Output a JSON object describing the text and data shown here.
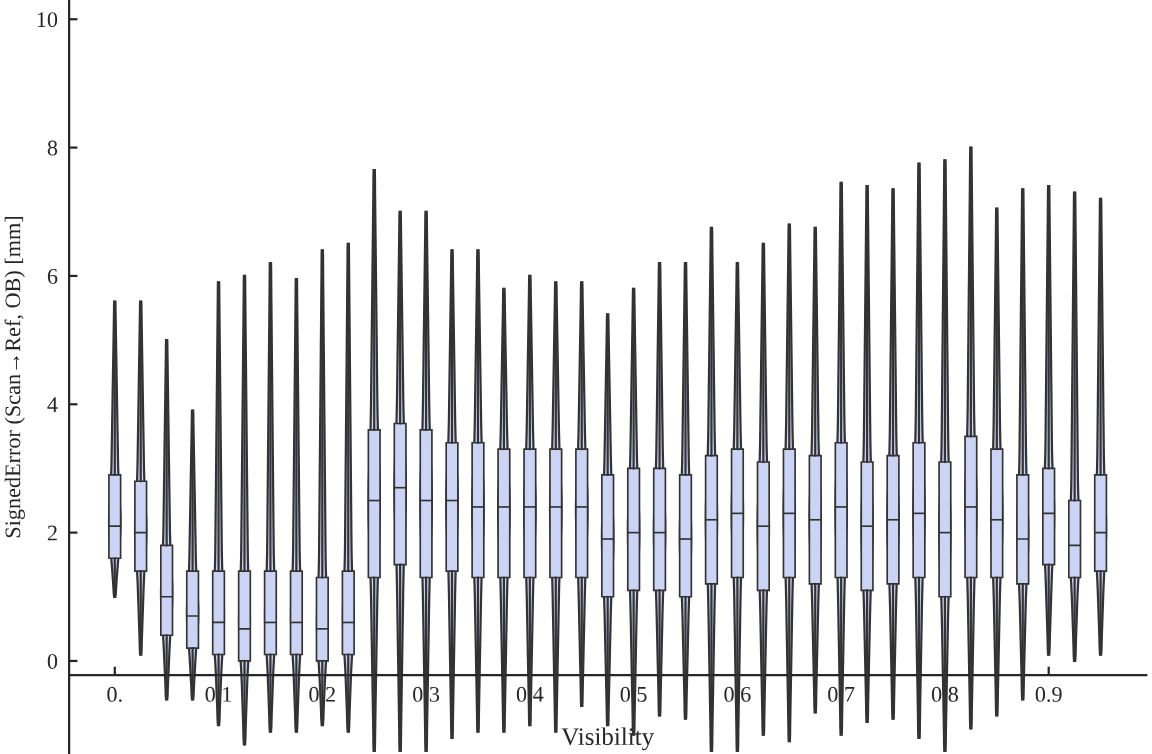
{
  "chart_data": {
    "type": "box",
    "xlabel": "Visibility",
    "ylabel": "SignedError (Scan→Ref, OB) [mm]",
    "categories": [
      "0.",
      null,
      null,
      null,
      "0.1",
      null,
      null,
      null,
      "0.2",
      null,
      null,
      null,
      "0.3",
      null,
      null,
      null,
      "0.4",
      null,
      null,
      null,
      "0.5",
      null,
      null,
      null,
      "0.6",
      null,
      null,
      null,
      "0.7",
      null,
      null,
      null,
      "0.8",
      null,
      null,
      null,
      "0.9",
      null,
      null
    ],
    "boxes": [
      {
        "low": 1.0,
        "q1": 1.6,
        "median": 2.1,
        "q3": 2.9,
        "high": 5.6
      },
      {
        "low": 0.1,
        "q1": 1.4,
        "median": 2.0,
        "q3": 2.8,
        "high": 5.6
      },
      {
        "low": -0.6,
        "q1": 0.4,
        "median": 1.0,
        "q3": 1.8,
        "high": 5.0
      },
      {
        "low": -0.6,
        "q1": 0.2,
        "median": 0.7,
        "q3": 1.4,
        "high": 3.9
      },
      {
        "low": -1.0,
        "q1": 0.1,
        "median": 0.6,
        "q3": 1.4,
        "high": 5.9
      },
      {
        "low": -1.3,
        "q1": 0.0,
        "median": 0.5,
        "q3": 1.4,
        "high": 6.0
      },
      {
        "low": -1.1,
        "q1": 0.1,
        "median": 0.6,
        "q3": 1.4,
        "high": 6.2
      },
      {
        "low": -1.1,
        "q1": 0.1,
        "median": 0.6,
        "q3": 1.4,
        "high": 5.95
      },
      {
        "low": -1.0,
        "q1": 0.0,
        "median": 0.5,
        "q3": 1.3,
        "high": 6.4
      },
      {
        "low": -1.1,
        "q1": 0.1,
        "median": 0.6,
        "q3": 1.4,
        "high": 6.5
      },
      {
        "low": -1.4,
        "q1": 1.3,
        "median": 2.5,
        "q3": 3.6,
        "high": 7.65
      },
      {
        "low": -1.4,
        "q1": 1.5,
        "median": 2.7,
        "q3": 3.7,
        "high": 7.0
      },
      {
        "low": -1.4,
        "q1": 1.3,
        "median": 2.5,
        "q3": 3.6,
        "high": 7.0
      },
      {
        "low": -1.2,
        "q1": 1.4,
        "median": 2.5,
        "q3": 3.4,
        "high": 6.4
      },
      {
        "low": -1.1,
        "q1": 1.3,
        "median": 2.4,
        "q3": 3.4,
        "high": 6.4
      },
      {
        "low": -1.1,
        "q1": 1.3,
        "median": 2.4,
        "q3": 3.3,
        "high": 5.8
      },
      {
        "low": -1.0,
        "q1": 1.3,
        "median": 2.4,
        "q3": 3.3,
        "high": 6.0
      },
      {
        "low": -1.1,
        "q1": 1.3,
        "median": 2.4,
        "q3": 3.3,
        "high": 5.9
      },
      {
        "low": -0.7,
        "q1": 1.3,
        "median": 2.4,
        "q3": 3.3,
        "high": 5.9
      },
      {
        "low": -1.0,
        "q1": 1.0,
        "median": 1.9,
        "q3": 2.9,
        "high": 5.4
      },
      {
        "low": -1.15,
        "q1": 1.1,
        "median": 2.0,
        "q3": 3.0,
        "high": 5.8
      },
      {
        "low": -0.85,
        "q1": 1.1,
        "median": 2.0,
        "q3": 3.0,
        "high": 6.2
      },
      {
        "low": -0.9,
        "q1": 1.0,
        "median": 1.9,
        "q3": 2.9,
        "high": 6.2
      },
      {
        "low": -1.4,
        "q1": 1.2,
        "median": 2.2,
        "q3": 3.2,
        "high": 6.75
      },
      {
        "low": -1.4,
        "q1": 1.3,
        "median": 2.3,
        "q3": 3.3,
        "high": 6.2
      },
      {
        "low": -1.15,
        "q1": 1.1,
        "median": 2.1,
        "q3": 3.1,
        "high": 6.5
      },
      {
        "low": -1.25,
        "q1": 1.3,
        "median": 2.3,
        "q3": 3.3,
        "high": 6.8
      },
      {
        "low": -0.8,
        "q1": 1.2,
        "median": 2.2,
        "q3": 3.2,
        "high": 6.75
      },
      {
        "low": -1.15,
        "q1": 1.3,
        "median": 2.4,
        "q3": 3.4,
        "high": 7.45
      },
      {
        "low": -0.95,
        "q1": 1.1,
        "median": 2.1,
        "q3": 3.1,
        "high": 7.4
      },
      {
        "low": -0.9,
        "q1": 1.2,
        "median": 2.2,
        "q3": 3.2,
        "high": 7.35
      },
      {
        "low": -1.2,
        "q1": 1.3,
        "median": 2.3,
        "q3": 3.4,
        "high": 7.75
      },
      {
        "low": -1.4,
        "q1": 1.0,
        "median": 2.0,
        "q3": 3.1,
        "high": 7.8
      },
      {
        "low": -1.05,
        "q1": 1.3,
        "median": 2.4,
        "q3": 3.5,
        "high": 8.0
      },
      {
        "low": -0.85,
        "q1": 1.3,
        "median": 2.2,
        "q3": 3.3,
        "high": 7.05
      },
      {
        "low": -0.6,
        "q1": 1.2,
        "median": 1.9,
        "q3": 2.9,
        "high": 7.35
      },
      {
        "low": 0.1,
        "q1": 1.5,
        "median": 2.3,
        "q3": 3.0,
        "high": 7.4
      },
      {
        "low": 0.0,
        "q1": 1.3,
        "median": 1.8,
        "q3": 2.5,
        "high": 7.3
      },
      {
        "low": 0.1,
        "q1": 1.4,
        "median": 2.0,
        "q3": 2.9,
        "high": 7.2
      }
    ],
    "color": "#ccd4f5",
    "ylim": [
      -1.45,
      10.3
    ],
    "yticks": [
      0,
      2,
      4,
      6,
      8,
      10
    ],
    "grid": false,
    "legend": false
  }
}
